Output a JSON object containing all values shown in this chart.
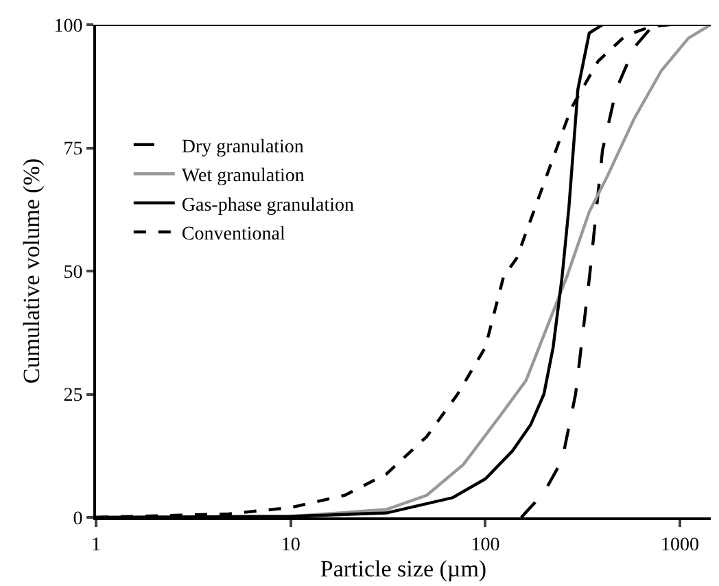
{
  "chart_data": {
    "type": "line",
    "xlabel": "Particle size (µm)",
    "ylabel": "Cumulative volume (%)",
    "log": "x",
    "xlim": [
      1,
      1440
    ],
    "xticks": [
      1,
      10,
      100,
      1000
    ],
    "ylim": [
      0,
      100
    ],
    "yticks": [
      0,
      25,
      50,
      75,
      100
    ],
    "legend": "top left",
    "marker": "none",
    "series": [
      {
        "name": "Dry granulation",
        "color": "#000000",
        "line_style": "dashed",
        "x": [
          153,
          200,
          248,
          291,
          343,
          400,
          471,
          583,
          722,
          850
        ],
        "values": [
          0,
          5,
          11.6,
          25,
          48.8,
          74.5,
          86.9,
          95.4,
          99.7,
          100
        ]
      },
      {
        "name": "Wet granulation",
        "color": "#999999",
        "line_style": "solid",
        "x": [
          1,
          10,
          31,
          50,
          77,
          117,
          162,
          262,
          342,
          423,
          583,
          804,
          1107,
          1440
        ],
        "values": [
          0,
          0.2,
          1.6,
          4.5,
          10.7,
          20.2,
          27.8,
          48.8,
          62,
          69.2,
          81,
          90.7,
          97.3,
          100
        ]
      },
      {
        "name": "Gas-phase granulation",
        "color": "#000000",
        "line_style": "solid",
        "x": [
          1,
          10,
          31,
          68,
          100,
          138,
          171,
          200,
          223,
          248,
          269,
          299,
          342,
          401
        ],
        "values": [
          0,
          0.2,
          0.9,
          4,
          7.8,
          13.5,
          18.8,
          25,
          34.5,
          48.8,
          63,
          86.9,
          98.3,
          100
        ]
      },
      {
        "name": "Conventional",
        "color": "#000000",
        "line_style": "dotted",
        "x": [
          1,
          4.8,
          10,
          19,
          31,
          50,
          72,
          100,
          124,
          145,
          200,
          276,
          380,
          525,
          722,
          890
        ],
        "values": [
          0,
          0.7,
          2,
          4.5,
          8.8,
          16.4,
          25,
          34.5,
          48.8,
          52.6,
          67.8,
          83,
          92.6,
          97.8,
          99.7,
          100
        ]
      }
    ]
  }
}
